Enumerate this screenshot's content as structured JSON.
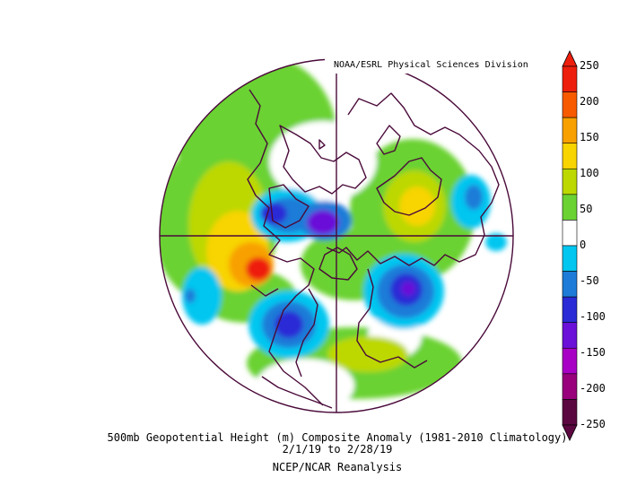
{
  "credit": "NOAA/ESRL Physical Sciences Division",
  "caption": {
    "line1": "500mb Geopotential Height (m) Composite Anomaly (1981-2010 Climatology)",
    "line2": "2/1/19  to 2/28/19",
    "line3": "NCEP/NCAR Reanalysis"
  },
  "colorbar": {
    "ticks": [
      "250",
      "200",
      "150",
      "100",
      "50",
      "0",
      "-50",
      "-100",
      "-150",
      "-200",
      "-250"
    ],
    "colors": [
      "#ee1e0c",
      "#f85a00",
      "#f8a000",
      "#f8d400",
      "#bcd800",
      "#6ad232",
      "#ffffff",
      "#00c6f0",
      "#1e7cd8",
      "#2a2ad6",
      "#6a10d8",
      "#a800c4",
      "#98007c",
      "#5c0840"
    ]
  },
  "colors": {
    "border": "#4a0a3a",
    "neutral": "#ffffff"
  }
}
